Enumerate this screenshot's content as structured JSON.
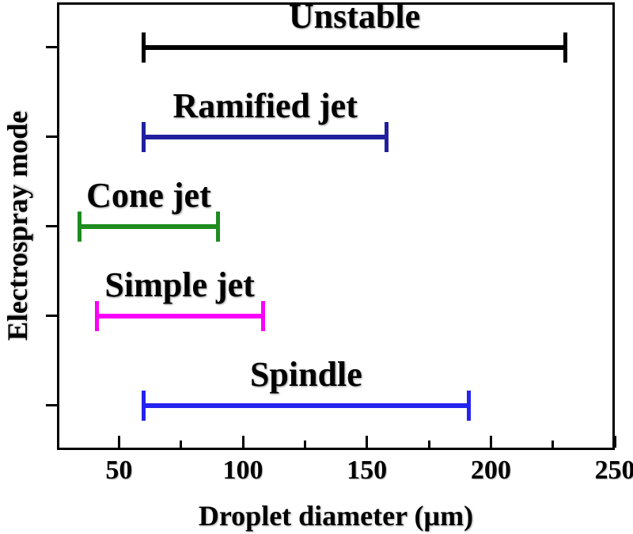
{
  "chart_data": {
    "type": "bar",
    "subtype": "horizontal-range",
    "title": "",
    "xlabel": "Droplet diameter (µm)",
    "ylabel": "Electrospray mode",
    "xlim": [
      25,
      250
    ],
    "x_major_ticks": [
      50,
      100,
      150,
      200,
      250
    ],
    "x_minor_ticks": [
      75,
      125,
      175,
      225
    ],
    "grid": false,
    "legend": "none",
    "series": [
      {
        "name": "Unstable",
        "range_um": [
          60,
          230
        ],
        "color": "#000000"
      },
      {
        "name": "Ramified jet",
        "range_um": [
          60,
          158
        ],
        "color": "#20209f"
      },
      {
        "name": "Cone jet",
        "range_um": [
          34,
          90
        ],
        "color": "#1e8c1e"
      },
      {
        "name": "Simple jet",
        "range_um": [
          41,
          108
        ],
        "color": "#fa00fa"
      },
      {
        "name": "Spindle",
        "range_um": [
          60,
          191
        ],
        "color": "#2424ee"
      }
    ]
  }
}
